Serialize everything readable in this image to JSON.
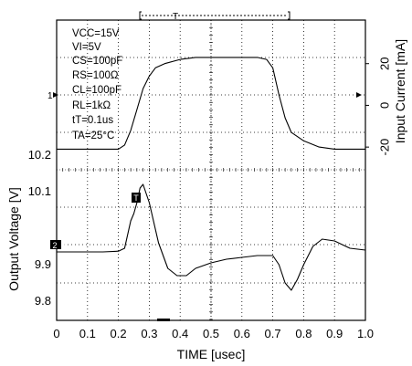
{
  "chart_data": {
    "type": "line",
    "title": "",
    "xlabel": "TIME [usec]",
    "xlim": [
      0,
      1.0
    ],
    "x_ticks": [
      "0",
      "0.1",
      "0.2",
      "0.3",
      "0.4",
      "0.5",
      "0.6",
      "0.7",
      "0.8",
      "0.9",
      "1.0"
    ],
    "grid": true,
    "conditions": [
      "VCC=15V",
      "VI=5V",
      "CS=100pF",
      "RS=100Ω",
      "CL=100pF",
      "RL=1kΩ",
      "tT=0.1us",
      "TA=25°C"
    ],
    "trigger_marker": "T",
    "channel_markers": [
      "1",
      "2"
    ],
    "top_panel": {
      "ylabel": "Input Current [mA]",
      "ylim": [
        -30,
        40
      ],
      "y_ticks": [
        "20",
        "0",
        "-20"
      ],
      "series": [
        {
          "x": [
            0,
            0.05,
            0.1,
            0.15,
            0.2,
            0.22,
            0.24,
            0.26,
            0.28,
            0.3,
            0.32,
            0.35,
            0.4,
            0.45,
            0.5,
            0.55,
            0.6,
            0.65,
            0.68,
            0.7,
            0.72,
            0.74,
            0.76,
            0.8,
            0.85,
            0.9,
            0.95,
            1.0
          ],
          "y": [
            -21,
            -21,
            -21,
            -21,
            -21,
            -19,
            -12,
            -2,
            8,
            14,
            18,
            20,
            22,
            23,
            23,
            23,
            23,
            23,
            22,
            18,
            5,
            -6,
            -13,
            -17,
            -20,
            -21,
            -21,
            -21
          ]
        }
      ]
    },
    "bottom_panel": {
      "ylabel": "Output Voltage [V]",
      "ylim": [
        9.75,
        10.2
      ],
      "y_ticks": [
        "10.2",
        "10.1",
        "9.9",
        "9.8"
      ],
      "series": [
        {
          "x": [
            0,
            0.05,
            0.1,
            0.15,
            0.2,
            0.22,
            0.24,
            0.25,
            0.26,
            0.27,
            0.28,
            0.3,
            0.33,
            0.36,
            0.39,
            0.42,
            0.45,
            0.5,
            0.55,
            0.6,
            0.65,
            0.7,
            0.72,
            0.74,
            0.76,
            0.78,
            0.8,
            0.83,
            0.86,
            0.9,
            0.95,
            1.0
          ],
          "y": [
            9.935,
            9.935,
            9.935,
            9.935,
            9.937,
            9.945,
            10.02,
            10.04,
            10.07,
            10.11,
            10.12,
            10.07,
            9.96,
            9.89,
            9.87,
            9.87,
            9.89,
            9.905,
            9.915,
            9.92,
            9.925,
            9.925,
            9.9,
            9.85,
            9.83,
            9.86,
            9.9,
            9.95,
            9.97,
            9.965,
            9.945,
            9.94
          ]
        }
      ]
    }
  }
}
